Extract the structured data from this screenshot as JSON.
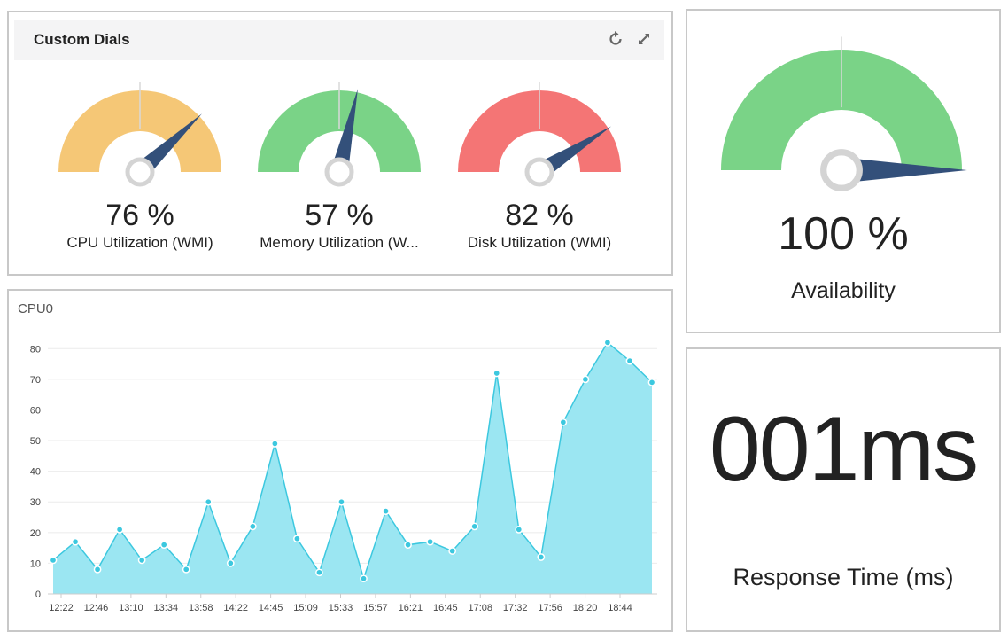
{
  "dials_panel": {
    "title": "Custom Dials",
    "icons": [
      "refresh-icon",
      "expand-icon"
    ],
    "dials": [
      {
        "value": 76,
        "value_text": "76 %",
        "label": "CPU Utilization (WMI)",
        "color": "#f5c776"
      },
      {
        "value": 57,
        "value_text": "57 %",
        "label": "Memory Utilization (W...",
        "color": "#7ad387"
      },
      {
        "value": 82,
        "value_text": "82 %",
        "label": "Disk Utilization (WMI)",
        "color": "#f47575"
      }
    ],
    "needle_color": "#33507a"
  },
  "availability": {
    "value": 100,
    "value_text": "100 %",
    "label": "Availability",
    "color": "#7ad387"
  },
  "response_time": {
    "value_text": "001ms",
    "label": "Response Time (ms)"
  },
  "chart_data": {
    "type": "area",
    "title": "CPU0",
    "xlabel": "",
    "ylabel": "",
    "ylim": [
      0,
      85
    ],
    "yticks": [
      0,
      10,
      20,
      30,
      40,
      50,
      60,
      70,
      80
    ],
    "xtick_labels": [
      "12:22",
      "12:46",
      "13:10",
      "13:34",
      "13:58",
      "14:22",
      "14:45",
      "15:09",
      "15:33",
      "15:57",
      "16:21",
      "16:45",
      "17:08",
      "17:32",
      "17:56",
      "18:20",
      "18:44"
    ],
    "values": [
      11,
      17,
      8,
      21,
      11,
      16,
      8,
      30,
      10,
      22,
      49,
      18,
      7,
      30,
      5,
      27,
      16,
      17,
      14,
      22,
      72,
      21,
      12,
      56,
      70,
      82,
      76,
      69
    ],
    "fill_color": "#9be6f2",
    "line_color": "#3cc8df",
    "grid": true
  }
}
